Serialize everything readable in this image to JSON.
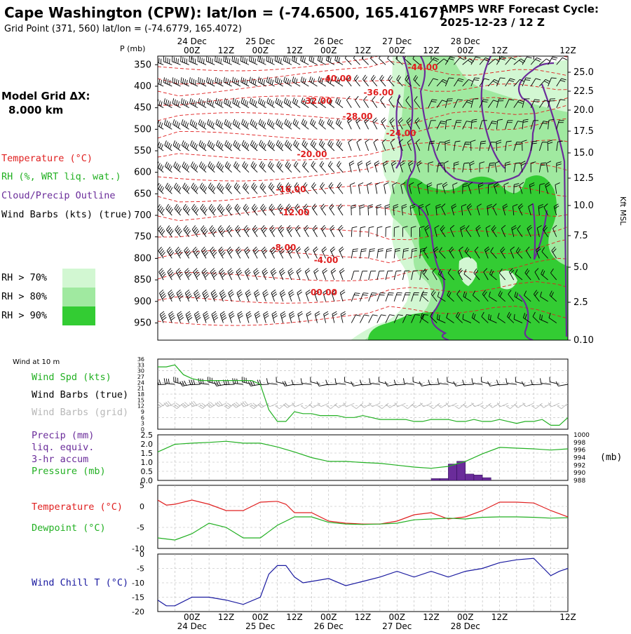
{
  "header": {
    "title": "Cape Washington (CPW):  lat/lon = (-74.6500, 165.4167)",
    "subtitle": "Grid Point (371, 560) lat/lon = (-74.6779, 165.4072)",
    "cycle_line1": "AMPS WRF Forecast Cycle:",
    "cycle_line2": "2025-12-23 / 12  Z"
  },
  "left_panel": {
    "model_grid_label": "Model Grid ΔX:",
    "model_grid_value": "8.000 km",
    "legend": [
      {
        "label": "Temperature (°C)",
        "color": "#e02020"
      },
      {
        "label": "RH (%, WRT liq. wat.)",
        "color": "#22b022"
      },
      {
        "label": "Cloud/Precip Outline",
        "color": "#6a2c9a"
      },
      {
        "label": "Wind Barbs (kts) (true)",
        "color": "#000000"
      }
    ],
    "rh_legend": [
      {
        "label": "RH > 70%",
        "color": "#d2f7d2"
      },
      {
        "label": "RH > 80%",
        "color": "#a0e9a0"
      },
      {
        "label": "RH > 90%",
        "color": "#33cc33"
      }
    ]
  },
  "time_axis": {
    "day_labels": [
      "24 Dec",
      "25 Dec",
      "26 Dec",
      "27 Dec",
      "28 Dec"
    ],
    "hour_labels": [
      "00Z",
      "12Z",
      "00Z",
      "12Z",
      "00Z",
      "12Z",
      "00Z",
      "12Z",
      "00Z",
      "12Z"
    ]
  },
  "colors": {
    "temperature": "#e02020",
    "dewpoint": "#22b022",
    "wind_speed": "#22b022",
    "pressure": "#22b022",
    "precip": "#6a2c9a",
    "cloud_outline": "#6a2c9a",
    "wind_chill": "#1a1aa0",
    "rh70": "#d2f7d2",
    "rh80": "#a0e9a0",
    "rh90": "#33cc33",
    "grid": "#b4b4b4"
  },
  "chart_data": [
    {
      "type": "heatmap",
      "name": "cross-section",
      "ylabel": "P (mb)",
      "y2label": "Kft MSL",
      "pressure_levels": [
        350,
        400,
        450,
        500,
        550,
        600,
        650,
        700,
        750,
        800,
        850,
        900,
        950
      ],
      "height_ticks": [
        "25.0",
        "22.5",
        "20.0",
        "17.5",
        "15.0",
        "12.5",
        "10.0",
        "7.5",
        "5.0",
        "2.5",
        "0.10"
      ],
      "temperature_contour_labels": [
        "-44.00",
        "-40.00",
        "-36.00",
        "-32.00",
        "-28.00",
        "-24.00",
        "-20.00",
        "-16.00",
        "-12.00",
        "-8.00",
        "-4.00",
        "00.00"
      ],
      "xrange_hours": [
        -12,
        132
      ]
    },
    {
      "type": "line",
      "name": "wind-10m",
      "title": "Wind at 10 m",
      "series_label": "Wind Spd (kts)",
      "barbs_true_label": "Wind Barbs (true)",
      "barbs_grid_label": "Wind Barbs (grid)",
      "yticks": [
        "36",
        "33",
        "30",
        "27",
        "24",
        "21",
        "18",
        "15",
        "12",
        "9",
        "6",
        "3",
        "0"
      ],
      "ylim": [
        0,
        36
      ],
      "x": [
        -12,
        -9,
        -6,
        -3,
        0,
        3,
        6,
        9,
        12,
        15,
        18,
        21,
        24,
        27,
        30,
        33,
        36,
        39,
        42,
        45,
        48,
        51,
        54,
        57,
        60,
        63,
        66,
        69,
        72,
        75,
        78,
        81,
        84,
        87,
        90,
        93,
        96,
        99,
        102,
        105,
        108,
        111,
        114,
        117,
        120,
        123,
        126,
        129,
        132
      ],
      "values": [
        32,
        32,
        33,
        28,
        26,
        25,
        25,
        25,
        25,
        25,
        25,
        25,
        23,
        10,
        4,
        4,
        9,
        8,
        8,
        7,
        7,
        7,
        6,
        6,
        7,
        6,
        5,
        5,
        5,
        5,
        4,
        4,
        5,
        5,
        5,
        4,
        4,
        5,
        4,
        4,
        5,
        4,
        3,
        4,
        4,
        5,
        2,
        2,
        6
      ]
    },
    {
      "type": "bar",
      "name": "precip-pressure",
      "series_label_lines": [
        "Precip (mm)",
        "liq. equiv.",
        "3-hr accum"
      ],
      "pressure_label": "Pressure (mb)",
      "y2unit": "(mb)",
      "yticks": [
        "2.5",
        "2.0",
        "1.5",
        "1.0",
        "0.5",
        "0.0"
      ],
      "ylim": [
        0,
        2.5
      ],
      "y2ticks": [
        "1000",
        "998",
        "996",
        "994",
        "992",
        "990",
        "988"
      ],
      "y2lim": [
        988,
        1000
      ],
      "precip_x": [
        84,
        87,
        90,
        93,
        96,
        99,
        102
      ],
      "precip_values": [
        0.1,
        0.1,
        0.9,
        1.05,
        0.35,
        0.3,
        0.15
      ],
      "pressure_x": [
        -12,
        -6,
        0,
        6,
        12,
        18,
        24,
        30,
        36,
        42,
        48,
        54,
        60,
        66,
        72,
        78,
        84,
        90,
        96,
        102,
        108,
        114,
        120,
        126,
        132
      ],
      "pressure_values": [
        995.5,
        997.5,
        997.8,
        998.0,
        998.3,
        997.8,
        997.8,
        996.8,
        995.5,
        994.0,
        993.0,
        993.0,
        992.7,
        992.5,
        992.0,
        991.5,
        991.2,
        991.7,
        993.0,
        995.0,
        996.7,
        996.5,
        996.3,
        996.0,
        996.3
      ]
    },
    {
      "type": "line",
      "name": "temperature-dewpoint",
      "yticks": [
        "5",
        "0",
        "-5",
        "-10"
      ],
      "ylim": [
        -10,
        5
      ],
      "series": [
        {
          "name": "Temperature (°C)",
          "x": [
            -12,
            -9,
            -6,
            0,
            6,
            12,
            15,
            18,
            24,
            30,
            33,
            36,
            42,
            48,
            54,
            60,
            66,
            72,
            78,
            84,
            90,
            96,
            102,
            108,
            114,
            120,
            126,
            132
          ],
          "values": [
            1.5,
            0.3,
            0.5,
            1.5,
            0.5,
            -1.0,
            -1.0,
            -1.0,
            1.0,
            1.2,
            0.5,
            -1.5,
            -1.5,
            -3.5,
            -4.0,
            -4.2,
            -4.2,
            -3.5,
            -2.0,
            -1.5,
            -3.0,
            -2.5,
            -1.0,
            1.0,
            1.0,
            0.8,
            -1.0,
            -2.5
          ]
        },
        {
          "name": "Dewpoint (°C)",
          "x": [
            -12,
            -6,
            0,
            6,
            12,
            18,
            24,
            30,
            36,
            42,
            48,
            54,
            60,
            66,
            72,
            78,
            84,
            90,
            96,
            102,
            108,
            114,
            120,
            126,
            132
          ],
          "values": [
            -7.5,
            -8.0,
            -6.5,
            -4.0,
            -5.0,
            -7.5,
            -7.5,
            -4.5,
            -2.5,
            -2.5,
            -3.8,
            -4.2,
            -4.3,
            -4.2,
            -4.0,
            -3.2,
            -3.0,
            -2.8,
            -3.0,
            -2.6,
            -2.5,
            -2.5,
            -2.6,
            -2.8,
            -2.7
          ]
        }
      ]
    },
    {
      "type": "line",
      "name": "wind-chill",
      "series_label": "Wind Chill T (°C)",
      "yticks": [
        "0",
        "-5",
        "-10",
        "-15",
        "-20"
      ],
      "ylim": [
        -20,
        0
      ],
      "x": [
        -12,
        -9,
        -6,
        0,
        6,
        12,
        18,
        24,
        27,
        30,
        33,
        36,
        39,
        42,
        48,
        54,
        60,
        66,
        72,
        78,
        84,
        90,
        96,
        102,
        108,
        114,
        120,
        126,
        129,
        132
      ],
      "values": [
        -16,
        -18,
        -18,
        -15,
        -15,
        -16,
        -17.5,
        -15,
        -7,
        -4,
        -4,
        -8,
        -10,
        -9.5,
        -8.5,
        -11,
        -9.5,
        -8,
        -6,
        -8,
        -6,
        -8,
        -6,
        -5,
        -3,
        -2,
        -1.5,
        -7.5,
        -6,
        -5
      ]
    }
  ]
}
